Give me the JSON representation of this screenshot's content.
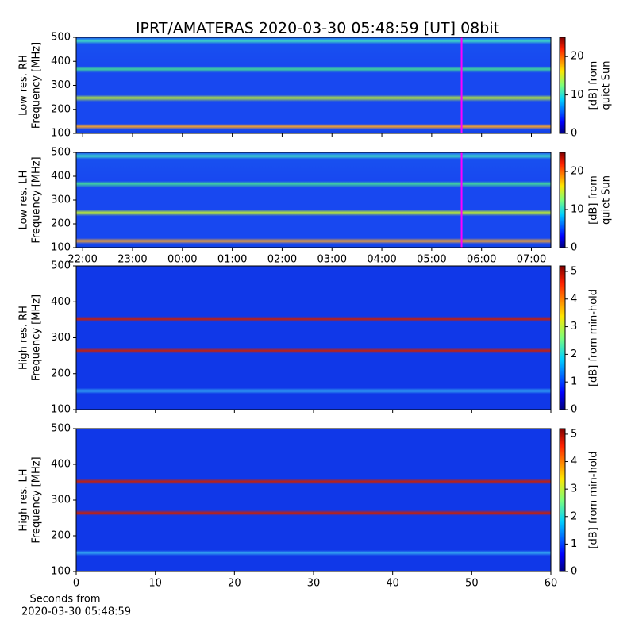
{
  "chart_data": [
    {
      "type": "heatmap",
      "title": "IPRT/AMATERAS 2020-03-30 05:48:59 [UT]   08bit",
      "ylabel": [
        "Low res. RH",
        "Frequency [MHz]"
      ],
      "ylim": [
        100,
        500
      ],
      "yticks": [
        100,
        200,
        300,
        400,
        500
      ],
      "xlim": [
        21.87,
        31.39
      ],
      "marker_x": 29.6,
      "marker_color": "#ff00ff",
      "colorbar": {
        "label": [
          "[dB] from",
          "quiet Sun"
        ],
        "lim": [
          0,
          25
        ],
        "ticks": [
          0,
          10,
          20
        ]
      }
    },
    {
      "type": "heatmap",
      "ylabel": [
        "Low res. LH",
        "Frequency [MHz]"
      ],
      "ylim": [
        100,
        500
      ],
      "yticks": [
        100,
        200,
        300,
        400,
        500
      ],
      "xlim": [
        21.87,
        31.39
      ],
      "marker_x": 29.6,
      "marker_color": "#ff00ff",
      "xticks": [
        {
          "value": 22,
          "label": "22:00"
        },
        {
          "value": 23,
          "label": "23:00"
        },
        {
          "value": 24,
          "label": "00:00"
        },
        {
          "value": 25,
          "label": "01:00"
        },
        {
          "value": 26,
          "label": "02:00"
        },
        {
          "value": 27,
          "label": "03:00"
        },
        {
          "value": 28,
          "label": "04:00"
        },
        {
          "value": 29,
          "label": "05:00"
        },
        {
          "value": 30,
          "label": "06:00"
        },
        {
          "value": 31,
          "label": "07:00"
        }
      ],
      "colorbar": {
        "label": [
          "[dB] from",
          "quiet Sun"
        ],
        "lim": [
          0,
          25
        ],
        "ticks": [
          0,
          10,
          20
        ]
      }
    },
    {
      "type": "heatmap",
      "ylabel": [
        "High res. RH",
        "Frequency [MHz]"
      ],
      "ylim": [
        100,
        500
      ],
      "yticks": [
        100,
        200,
        300,
        400,
        500
      ],
      "xlim": [
        0,
        60
      ],
      "colorbar": {
        "label": [
          "[dB] from min-hold"
        ],
        "lim": [
          0,
          5.2
        ],
        "ticks": [
          0,
          1,
          2,
          3,
          4,
          5
        ]
      }
    },
    {
      "type": "heatmap",
      "ylabel": [
        "High res. LH",
        "Frequency [MHz]"
      ],
      "ylim": [
        100,
        500
      ],
      "yticks": [
        100,
        200,
        300,
        400,
        500
      ],
      "xlim": [
        0,
        60
      ],
      "xticks": [
        0,
        10,
        20,
        30,
        40,
        50,
        60
      ],
      "xlabel": [
        "Seconds from",
        "2020-03-30 05:48:59"
      ],
      "colorbar": {
        "label": [
          "[dB] from min-hold"
        ],
        "lim": [
          0,
          5.2
        ],
        "ticks": [
          0,
          1,
          2,
          3,
          4,
          5
        ]
      }
    }
  ]
}
